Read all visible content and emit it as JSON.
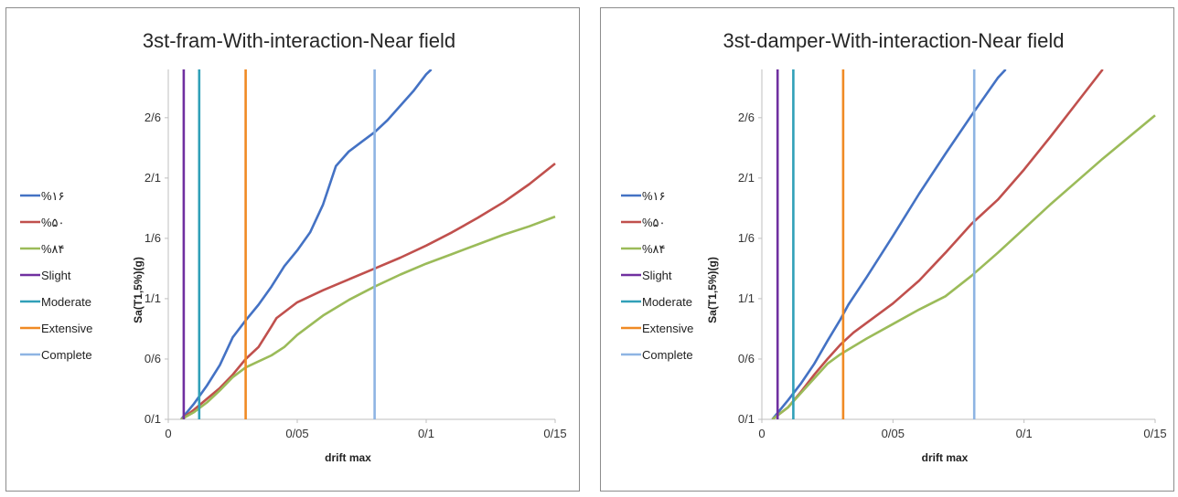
{
  "chart_data": [
    {
      "type": "line",
      "title": "3st-fram-With-interaction-Near  field",
      "xlabel": "drift max",
      "ylabel": "Sa(T1,5%)(g)",
      "xlim": [
        0,
        0.15
      ],
      "ylim": [
        0.1,
        3.0
      ],
      "x_ticks": [
        "0",
        "0/05",
        "0/1",
        "0/15"
      ],
      "y_ticks": [
        "0/1",
        "0/6",
        "1/1",
        "1/6",
        "2/1",
        "2/6"
      ],
      "legend_position": "left",
      "series": [
        {
          "name": "%۱۶",
          "color": "#4472C4",
          "x": [
            0.005,
            0.01,
            0.015,
            0.02,
            0.025,
            0.03,
            0.035,
            0.04,
            0.045,
            0.05,
            0.055,
            0.06,
            0.065,
            0.07,
            0.075,
            0.08,
            0.085,
            0.09,
            0.095,
            0.1,
            0.102
          ],
          "y": [
            0.1,
            0.23,
            0.38,
            0.55,
            0.78,
            0.92,
            1.05,
            1.2,
            1.37,
            1.5,
            1.65,
            1.88,
            2.2,
            2.32,
            2.4,
            2.48,
            2.58,
            2.7,
            2.82,
            2.96,
            3.0
          ]
        },
        {
          "name": "%۵۰",
          "color": "#C0504D",
          "x": [
            0.005,
            0.01,
            0.015,
            0.02,
            0.025,
            0.03,
            0.035,
            0.04,
            0.042,
            0.05,
            0.06,
            0.07,
            0.08,
            0.09,
            0.1,
            0.11,
            0.12,
            0.13,
            0.14,
            0.15
          ],
          "y": [
            0.1,
            0.18,
            0.27,
            0.36,
            0.47,
            0.6,
            0.7,
            0.87,
            0.94,
            1.07,
            1.17,
            1.26,
            1.35,
            1.44,
            1.54,
            1.65,
            1.77,
            1.9,
            2.05,
            2.22
          ]
        },
        {
          "name": "%۸۴",
          "color": "#9BBB59",
          "x": [
            0.005,
            0.01,
            0.015,
            0.02,
            0.025,
            0.03,
            0.035,
            0.04,
            0.045,
            0.05,
            0.06,
            0.07,
            0.08,
            0.09,
            0.1,
            0.11,
            0.12,
            0.13,
            0.14,
            0.15
          ],
          "y": [
            0.1,
            0.16,
            0.24,
            0.34,
            0.45,
            0.53,
            0.58,
            0.63,
            0.7,
            0.8,
            0.96,
            1.09,
            1.2,
            1.3,
            1.39,
            1.47,
            1.55,
            1.63,
            1.7,
            1.78
          ]
        },
        {
          "name": "Slight",
          "color": "#7030A0",
          "x": [
            0.006,
            0.006
          ],
          "y": [
            0.1,
            3.0
          ]
        },
        {
          "name": "Moderate",
          "color": "#31A0B8",
          "x": [
            0.012,
            0.012
          ],
          "y": [
            0.1,
            3.0
          ]
        },
        {
          "name": "Extensive",
          "color": "#F08A24",
          "x": [
            0.03,
            0.03
          ],
          "y": [
            0.1,
            3.0
          ]
        },
        {
          "name": "Complete",
          "color": "#8EB4E3",
          "x": [
            0.08,
            0.08
          ],
          "y": [
            0.1,
            3.0
          ]
        }
      ]
    },
    {
      "type": "line",
      "title": "3st-damper-With-interaction-Near  field",
      "xlabel": "drift max",
      "ylabel": "Sa(T1,5%)(g)",
      "xlim": [
        0,
        0.15
      ],
      "ylim": [
        0.1,
        3.0
      ],
      "x_ticks": [
        "0",
        "0/05",
        "0/1",
        "0/15"
      ],
      "y_ticks": [
        "0/1",
        "0/6",
        "1/1",
        "1/6",
        "2/1",
        "2/6"
      ],
      "legend_position": "left",
      "series": [
        {
          "name": "%۱۶",
          "color": "#4472C4",
          "x": [
            0.004,
            0.01,
            0.015,
            0.02,
            0.025,
            0.03,
            0.033,
            0.04,
            0.05,
            0.06,
            0.07,
            0.08,
            0.09,
            0.093
          ],
          "y": [
            0.1,
            0.26,
            0.4,
            0.56,
            0.75,
            0.93,
            1.05,
            1.28,
            1.62,
            1.97,
            2.3,
            2.62,
            2.93,
            3.0
          ]
        },
        {
          "name": "%۵۰",
          "color": "#C0504D",
          "x": [
            0.004,
            0.01,
            0.015,
            0.02,
            0.025,
            0.03,
            0.035,
            0.04,
            0.05,
            0.06,
            0.07,
            0.08,
            0.09,
            0.1,
            0.11,
            0.12,
            0.13
          ],
          "y": [
            0.1,
            0.2,
            0.33,
            0.47,
            0.6,
            0.72,
            0.82,
            0.9,
            1.06,
            1.25,
            1.48,
            1.72,
            1.92,
            2.17,
            2.44,
            2.72,
            3.0
          ]
        },
        {
          "name": "%۸۴",
          "color": "#9BBB59",
          "x": [
            0.004,
            0.01,
            0.015,
            0.02,
            0.025,
            0.03,
            0.04,
            0.05,
            0.06,
            0.07,
            0.08,
            0.09,
            0.1,
            0.11,
            0.12,
            0.13,
            0.14,
            0.15
          ],
          "y": [
            0.1,
            0.2,
            0.32,
            0.44,
            0.56,
            0.64,
            0.77,
            0.89,
            1.01,
            1.12,
            1.29,
            1.48,
            1.68,
            1.88,
            2.07,
            2.26,
            2.44,
            2.62
          ]
        },
        {
          "name": "Slight",
          "color": "#7030A0",
          "x": [
            0.006,
            0.006
          ],
          "y": [
            0.1,
            3.0
          ]
        },
        {
          "name": "Moderate",
          "color": "#31A0B8",
          "x": [
            0.012,
            0.012
          ],
          "y": [
            0.1,
            3.0
          ]
        },
        {
          "name": "Extensive",
          "color": "#F08A24",
          "x": [
            0.031,
            0.031
          ],
          "y": [
            0.1,
            3.0
          ]
        },
        {
          "name": "Complete",
          "color": "#8EB4E3",
          "x": [
            0.081,
            0.081
          ],
          "y": [
            0.1,
            3.0
          ]
        }
      ]
    }
  ]
}
